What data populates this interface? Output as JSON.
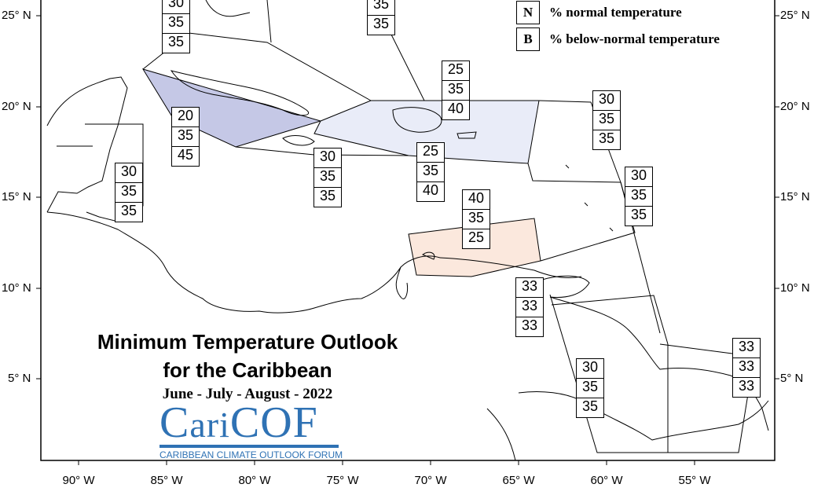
{
  "title_line1": "Minimum Temperature Outlook",
  "title_line2": "for the Caribbean",
  "subtitle": "June - July - August - 2022",
  "logo": {
    "main_prefix": "C",
    "main_mid": "ari",
    "main_suffix": "COF",
    "subtitle": "CARIBBEAN CLIMATE OUTLOOK FORUM"
  },
  "legend": [
    {
      "key": "N",
      "text": "% normal temperature"
    },
    {
      "key": "B",
      "text": "% below-normal temperature"
    }
  ],
  "lat_labels": [
    "25° N",
    "20° N",
    "15° N",
    "10° N",
    "5° N"
  ],
  "lon_labels": [
    "90° W",
    "85° W",
    "80° W",
    "75° W",
    "70° W",
    "65° W",
    "60° W",
    "55° W"
  ],
  "zone_colors": {
    "blue_strong": "#c5c8e6",
    "blue_light": "#e9ecf8",
    "peach": "#fbe8dd"
  },
  "outlooks": [
    {
      "values": [
        "30",
        "35",
        "35"
      ]
    },
    {
      "values": [
        "35",
        "35"
      ]
    },
    {
      "values": [
        "25",
        "35",
        "40"
      ]
    },
    {
      "values": [
        "30",
        "35",
        "35"
      ]
    },
    {
      "values": [
        "20",
        "35",
        "45"
      ]
    },
    {
      "values": [
        "30",
        "35",
        "35"
      ]
    },
    {
      "values": [
        "30",
        "35",
        "35"
      ]
    },
    {
      "values": [
        "25",
        "35",
        "40"
      ]
    },
    {
      "values": [
        "30",
        "35",
        "35"
      ]
    },
    {
      "values": [
        "40",
        "35",
        "25"
      ]
    },
    {
      "values": [
        "33",
        "33",
        "33"
      ]
    },
    {
      "values": [
        "33",
        "33",
        "33"
      ]
    },
    {
      "values": [
        "30",
        "35",
        "35"
      ]
    }
  ]
}
